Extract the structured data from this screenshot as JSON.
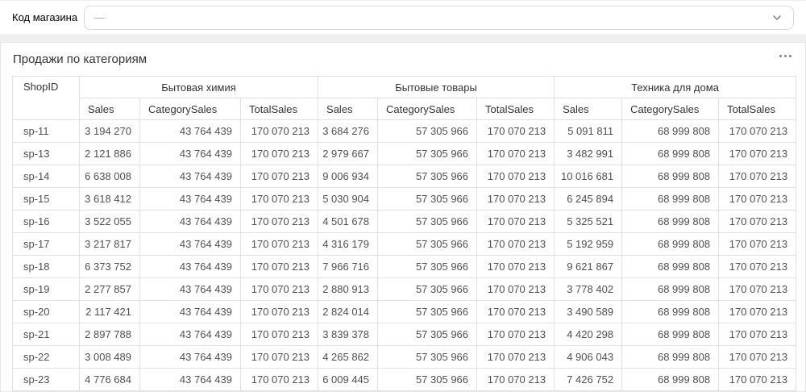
{
  "filter": {
    "label": "Код магазина",
    "value": "—"
  },
  "widget": {
    "title": "Продажи по категориям",
    "menu_icon": "ellipsis-icon"
  },
  "icons": {
    "select_chevron": "chevron-down-icon"
  },
  "colors": {
    "page_bg": "#f0f0f0",
    "card_border": "#e6e6e6",
    "table_border": "#e0e0e0",
    "select_border": "#d9d9d9",
    "header_text": "#333333",
    "data_text": "#4f4f4f",
    "placeholder_text": "#a8a8a8"
  },
  "table": {
    "id_header": "ShopID",
    "groups": [
      {
        "label": "Бытовая химия",
        "columns": [
          "Sales",
          "CategorySales",
          "TotalSales"
        ]
      },
      {
        "label": "Бытовые товары",
        "columns": [
          "Sales",
          "CategorySales",
          "TotalSales"
        ]
      },
      {
        "label": "Техника для дома",
        "columns": [
          "Sales",
          "CategorySales",
          "TotalSales"
        ]
      }
    ],
    "rows": [
      {
        "shop_id": "sp-11",
        "values": [
          "3 194 270",
          "43 764 439",
          "170 070 213",
          "3 684 276",
          "57 305 966",
          "170 070 213",
          "5 091 811",
          "68 999 808",
          "170 070 213"
        ]
      },
      {
        "shop_id": "sp-13",
        "values": [
          "2 121 886",
          "43 764 439",
          "170 070 213",
          "2 979 667",
          "57 305 966",
          "170 070 213",
          "3 482 991",
          "68 999 808",
          "170 070 213"
        ]
      },
      {
        "shop_id": "sp-14",
        "values": [
          "6 638 008",
          "43 764 439",
          "170 070 213",
          "9 006 934",
          "57 305 966",
          "170 070 213",
          "10 016 681",
          "68 999 808",
          "170 070 213"
        ]
      },
      {
        "shop_id": "sp-15",
        "values": [
          "3 618 412",
          "43 764 439",
          "170 070 213",
          "5 030 904",
          "57 305 966",
          "170 070 213",
          "6 245 894",
          "68 999 808",
          "170 070 213"
        ]
      },
      {
        "shop_id": "sp-16",
        "values": [
          "3 522 055",
          "43 764 439",
          "170 070 213",
          "4 501 678",
          "57 305 966",
          "170 070 213",
          "5 325 521",
          "68 999 808",
          "170 070 213"
        ]
      },
      {
        "shop_id": "sp-17",
        "values": [
          "3 217 817",
          "43 764 439",
          "170 070 213",
          "4 316 179",
          "57 305 966",
          "170 070 213",
          "5 192 959",
          "68 999 808",
          "170 070 213"
        ]
      },
      {
        "shop_id": "sp-18",
        "values": [
          "6 373 752",
          "43 764 439",
          "170 070 213",
          "7 966 716",
          "57 305 966",
          "170 070 213",
          "9 621 867",
          "68 999 808",
          "170 070 213"
        ]
      },
      {
        "shop_id": "sp-19",
        "values": [
          "2 277 857",
          "43 764 439",
          "170 070 213",
          "2 880 913",
          "57 305 966",
          "170 070 213",
          "3 778 402",
          "68 999 808",
          "170 070 213"
        ]
      },
      {
        "shop_id": "sp-20",
        "values": [
          "2 117 421",
          "43 764 439",
          "170 070 213",
          "2 824 014",
          "57 305 966",
          "170 070 213",
          "3 490 589",
          "68 999 808",
          "170 070 213"
        ]
      },
      {
        "shop_id": "sp-21",
        "values": [
          "2 897 788",
          "43 764 439",
          "170 070 213",
          "3 839 378",
          "57 305 966",
          "170 070 213",
          "4 420 298",
          "68 999 808",
          "170 070 213"
        ]
      },
      {
        "shop_id": "sp-22",
        "values": [
          "3 008 489",
          "43 764 439",
          "170 070 213",
          "4 265 862",
          "57 305 966",
          "170 070 213",
          "4 906 043",
          "68 999 808",
          "170 070 213"
        ]
      },
      {
        "shop_id": "sp-23",
        "values": [
          "4 776 684",
          "43 764 439",
          "170 070 213",
          "6 009 445",
          "57 305 966",
          "170 070 213",
          "7 426 752",
          "68 999 808",
          "170 070 213"
        ]
      }
    ]
  }
}
